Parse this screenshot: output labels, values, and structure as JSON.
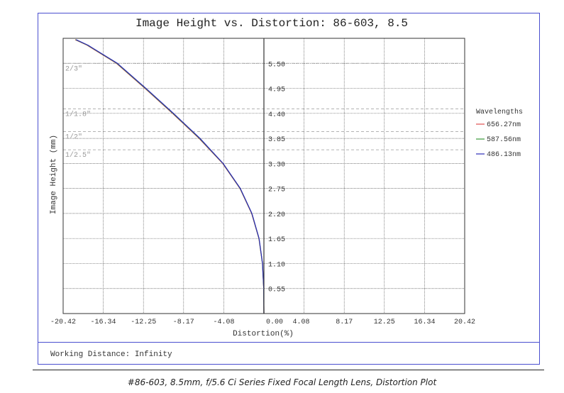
{
  "chart_data": {
    "type": "line",
    "title": "Image Height vs. Distortion: 86-603, 8.5",
    "xlabel": "Distortion(%)",
    "ylabel": "Image Height (mm)",
    "xlim": [
      -20.42,
      20.42
    ],
    "ylim": [
      0,
      6.05
    ],
    "x_ticks": [
      -20.42,
      -16.34,
      -12.25,
      -8.17,
      -4.08,
      0,
      4.08,
      8.17,
      12.25,
      16.34,
      20.42
    ],
    "x_tick_labels": [
      "-20.42",
      "-16.34",
      "-12.25",
      "-8.17",
      "-4.08",
      "0.00",
      "4.08",
      "8.17",
      "12.25",
      "16.34",
      "20.42"
    ],
    "y_ticks": [
      0.55,
      1.1,
      1.65,
      2.2,
      2.75,
      3.3,
      3.85,
      4.4,
      4.95,
      5.5
    ],
    "y_tick_labels": [
      "0.55",
      "1.10",
      "1.65",
      "2.20",
      "2.75",
      "3.30",
      "3.85",
      "4.40",
      "4.95",
      "5.50"
    ],
    "grid": true,
    "legend": {
      "title": "Wavelengths",
      "position": "right"
    },
    "sensor_formats": [
      {
        "label": "2/3\"",
        "height": 5.5
      },
      {
        "label": "1/1.8\"",
        "height": 4.5
      },
      {
        "label": "1/2\"",
        "height": 4.0
      },
      {
        "label": "1/2.5\"",
        "height": 3.6
      }
    ],
    "series": [
      {
        "name": "656.27nm",
        "color": "#e05050",
        "x": [
          0,
          -0.02,
          -0.15,
          -0.51,
          -1.25,
          -2.44,
          -4.2,
          -6.6,
          -9.3,
          -12.1,
          -15.0,
          -18.0,
          -19.2
        ],
        "y": [
          0,
          0.55,
          1.1,
          1.65,
          2.2,
          2.75,
          3.3,
          3.85,
          4.4,
          4.95,
          5.5,
          5.9,
          6.02
        ]
      },
      {
        "name": "587.56nm",
        "color": "#3a9a3a",
        "x": [
          0,
          -0.02,
          -0.15,
          -0.5,
          -1.23,
          -2.42,
          -4.17,
          -6.55,
          -9.25,
          -12.05,
          -14.95,
          -17.95,
          -19.15
        ],
        "y": [
          0,
          0.55,
          1.1,
          1.65,
          2.2,
          2.75,
          3.3,
          3.85,
          4.4,
          4.95,
          5.5,
          5.9,
          6.02
        ]
      },
      {
        "name": "486.13nm",
        "color": "#2b2bb8",
        "x": [
          0,
          -0.02,
          -0.14,
          -0.49,
          -1.22,
          -2.4,
          -4.15,
          -6.5,
          -9.2,
          -12.0,
          -14.9,
          -17.9,
          -19.1
        ],
        "y": [
          0,
          0.55,
          1.1,
          1.65,
          2.2,
          2.75,
          3.3,
          3.85,
          4.4,
          4.95,
          5.5,
          5.9,
          6.02
        ]
      }
    ]
  },
  "footer": {
    "working_distance": "Working Distance: Infinity"
  },
  "caption": "#86-603, 8.5mm, f/5.6 Ci Series Fixed Focal Length Lens, Distortion Plot"
}
